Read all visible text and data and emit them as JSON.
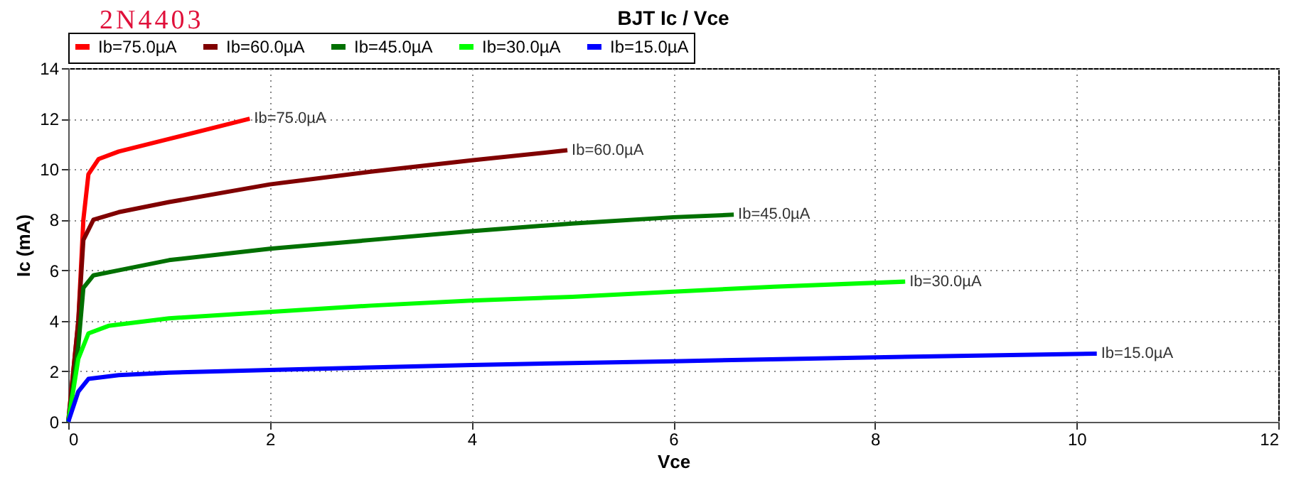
{
  "chart_data": {
    "type": "line",
    "title": "BJT Ic / Vce",
    "subtitle": "2N4403",
    "xlabel": "Vce",
    "ylabel": "Ic (mA)",
    "xlim": [
      0,
      12
    ],
    "xticks": [
      0,
      2,
      4,
      6,
      8,
      10,
      12
    ],
    "ylim": [
      0,
      14
    ],
    "yticks": [
      0,
      2,
      4,
      6,
      8,
      10,
      12,
      14
    ],
    "grid": true,
    "legend": "top left",
    "line_style": "solid",
    "marker": "none",
    "series": [
      {
        "name": "Ib=75.0µA",
        "color": "#ff0000",
        "x": [
          0,
          0.1,
          0.15,
          0.2,
          0.3,
          0.5,
          1.0,
          1.5,
          1.8
        ],
        "values": [
          0,
          4,
          8,
          9.8,
          10.4,
          10.7,
          11.2,
          11.7,
          12.0
        ]
      },
      {
        "name": "Ib=60.0µA",
        "color": "#800000",
        "x": [
          0,
          0.1,
          0.15,
          0.25,
          0.5,
          1,
          2,
          3,
          4,
          4.95
        ],
        "values": [
          0,
          4,
          7.2,
          8.0,
          8.3,
          8.7,
          9.4,
          9.9,
          10.35,
          10.75
        ]
      },
      {
        "name": "Ib=45.0µA",
        "color": "#007000",
        "x": [
          0,
          0.1,
          0.15,
          0.25,
          0.5,
          1,
          2,
          3,
          4,
          5,
          6,
          6.6
        ],
        "values": [
          0,
          3,
          5.3,
          5.8,
          6.0,
          6.4,
          6.85,
          7.2,
          7.55,
          7.85,
          8.1,
          8.2
        ]
      },
      {
        "name": "Ib=30.0µA",
        "color": "#00ff00",
        "x": [
          0,
          0.1,
          0.2,
          0.4,
          1,
          2,
          3,
          4,
          5,
          6,
          7,
          8.3
        ],
        "values": [
          0,
          2.5,
          3.5,
          3.8,
          4.1,
          4.35,
          4.6,
          4.8,
          4.95,
          5.15,
          5.35,
          5.55
        ]
      },
      {
        "name": "Ib=15.0µA",
        "color": "#0000ff",
        "x": [
          0,
          0.1,
          0.2,
          0.5,
          1,
          2,
          4,
          6,
          8,
          10.2
        ],
        "values": [
          0,
          1.2,
          1.7,
          1.85,
          1.95,
          2.05,
          2.25,
          2.4,
          2.55,
          2.7
        ]
      }
    ],
    "annotations": [
      {
        "text": "Ib=75.0µA",
        "x": 1.8,
        "y": 12.0
      },
      {
        "text": "Ib=60.0µA",
        "x": 4.95,
        "y": 10.75
      },
      {
        "text": "Ib=45.0µA",
        "x": 6.6,
        "y": 8.2
      },
      {
        "text": "Ib=30.0µA",
        "x": 8.3,
        "y": 5.55
      },
      {
        "text": "Ib=15.0µA",
        "x": 10.2,
        "y": 2.7
      }
    ]
  }
}
